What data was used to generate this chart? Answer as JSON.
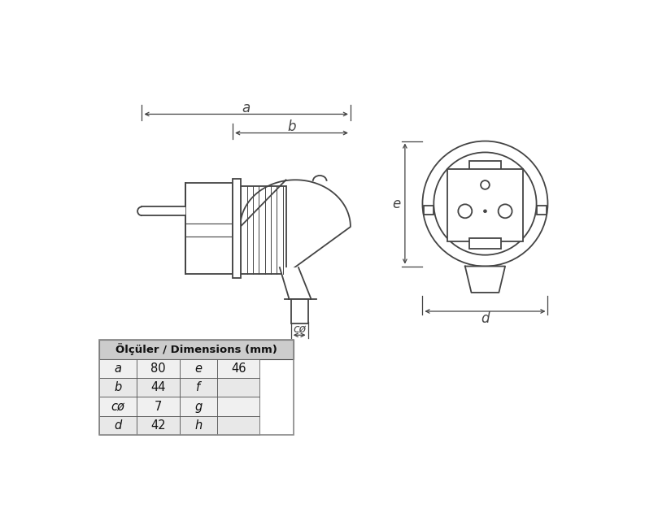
{
  "bg_color": "#ffffff",
  "line_color": "#444444",
  "table_header_bg": "#cccccc",
  "table_row_bg_alt": "#e8e8e8",
  "table_row_bg": "#f0f0f0",
  "table_title": "Ölçüler / Dimensions (mm)",
  "table_data": [
    [
      "a",
      "80",
      "e",
      "46"
    ],
    [
      "b",
      "44",
      "f",
      ""
    ],
    [
      "cø",
      "7",
      "g",
      ""
    ],
    [
      "d",
      "42",
      "h",
      ""
    ]
  ]
}
